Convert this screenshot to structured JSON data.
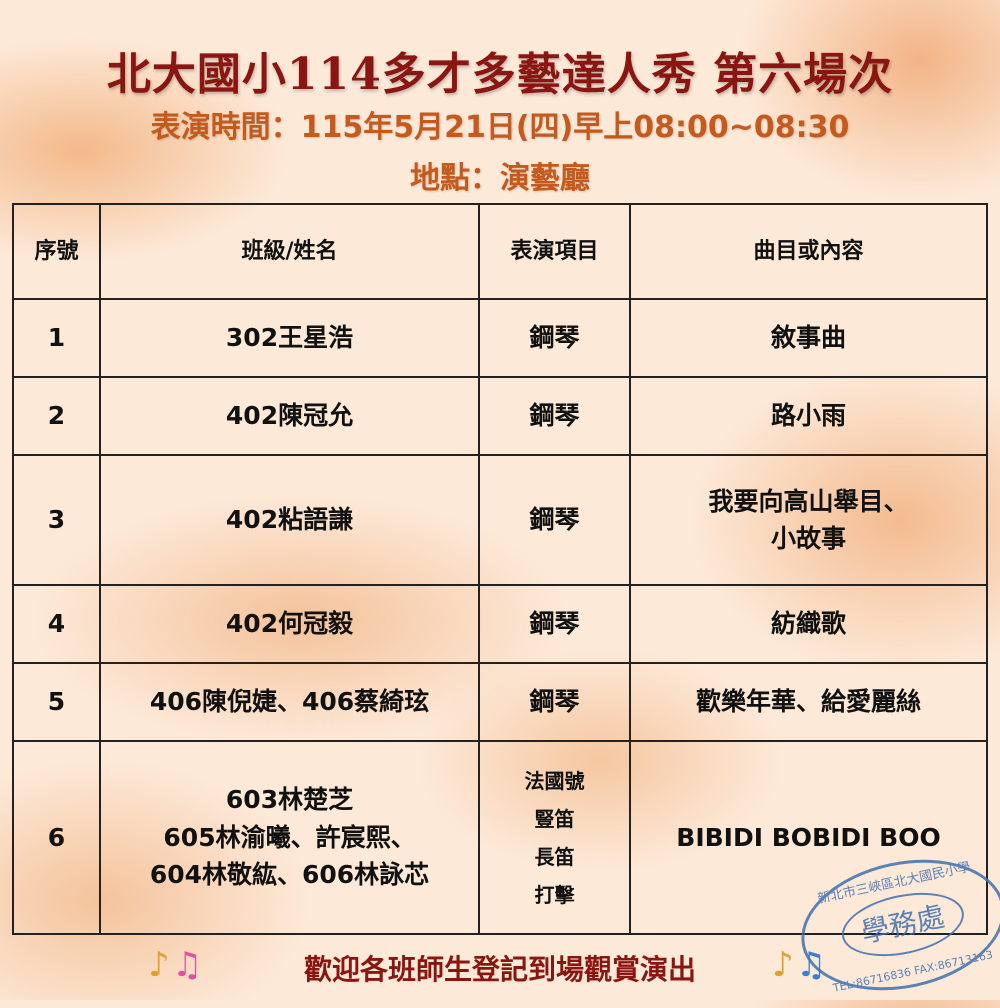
{
  "title": "北大國小114多才多藝達人秀  第六場次",
  "time": "表演時間：115年5月21日(四)早上08:00~08:30",
  "venue": "地點：演藝廳",
  "table": {
    "headers": [
      "序號",
      "班級/姓名",
      "表演項目",
      "曲目或內容"
    ],
    "rows": [
      {
        "no": "1",
        "name": [
          "302王星浩"
        ],
        "item": [
          "鋼琴"
        ],
        "piece": [
          "敘事曲"
        ]
      },
      {
        "no": "2",
        "name": [
          "402陳冠允"
        ],
        "item": [
          "鋼琴"
        ],
        "piece": [
          "路小雨"
        ]
      },
      {
        "no": "3",
        "name": [
          "402粘語謙"
        ],
        "item": [
          "鋼琴"
        ],
        "piece": [
          "我要向高山舉目、",
          "小故事"
        ]
      },
      {
        "no": "4",
        "name": [
          "402何冠毅"
        ],
        "item": [
          "鋼琴"
        ],
        "piece": [
          "紡織歌"
        ]
      },
      {
        "no": "5",
        "name": [
          "406陳倪婕、406蔡綺玹"
        ],
        "item": [
          "鋼琴"
        ],
        "piece": [
          "歡樂年華、給愛麗絲"
        ]
      },
      {
        "no": "6",
        "name": [
          "603林楚芝",
          "605林渝曦、許宸熙、",
          "604林敬紘、606林詠芯"
        ],
        "item": [
          "法國號",
          "豎笛",
          "長笛",
          "打擊"
        ],
        "piece": [
          "BIBIDI BOBIDI BOO"
        ]
      }
    ]
  },
  "footer": "歡迎各班師生登記到場觀賞演出",
  "stamp": {
    "top": "新北市三峽區北大國民小學",
    "center": "學務處",
    "bottom": "TEL:86716836 FAX:86713163"
  },
  "colors": {
    "title": "#8a1612",
    "subtitle": "#c45a1c",
    "stamp": "#3f6fb0"
  }
}
